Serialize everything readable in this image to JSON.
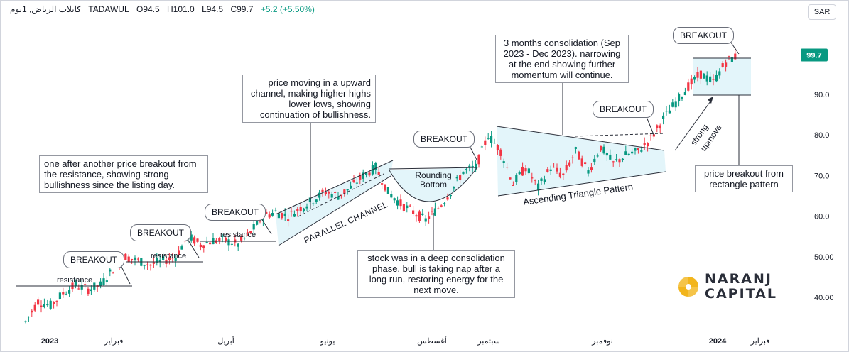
{
  "header": {
    "symbol": "كابلات الرياض, 1يوم",
    "exchange": "TADAWUL",
    "open": "O94.5",
    "high": "H101.0",
    "low": "L94.5",
    "close": "C99.7",
    "change": "+5.2 (+5.50%)"
  },
  "currency": "SAR",
  "annotations": {
    "breakout_label": "BREAKOUT",
    "resistance_label": "resistance",
    "note_resistance": "one after another price breakout from the resistance, showing strong bullishness since the listing day.",
    "note_channel": "price moving in a upward channel, making higher highs lower lows, showing continuation of bullishness.",
    "note_deep": "stock was in a deep consolidation phase. bull is taking nap after a long run, restoring energy for the next move.",
    "note_consolidation": "3 months consolidation (Sep 2023 - Dec 2023). narrowing at the end showing further momentum will continue.",
    "note_rectangle": "price breakout from rectangle pattern",
    "parallel_channel": "PARALLEL CHANNEL",
    "rounding_bottom_1": "Rounding",
    "rounding_bottom_2": "Bottom",
    "ascending_triangle": "Ascending Triangle Pattern",
    "strong_upmove_1": "strong",
    "strong_upmove_2": "upmove"
  },
  "logo": {
    "line1": "NARANJ",
    "line2": "CAPITAL",
    "mark_color": "#f2b51c"
  },
  "colors": {
    "up": "#089981",
    "down": "#f23645",
    "pattern_fill": "#e3f5fa",
    "price_badge": "#089981",
    "line": "#2a2e39"
  },
  "chart_data": {
    "type": "candlestick",
    "x_ticks": [
      "2023",
      "فبراير",
      "أبريل",
      "يونيو",
      "أغسطس",
      "سبتمبر",
      "نوفمبر",
      "2024",
      "فبراير"
    ],
    "y_ticks": [
      "90.0",
      "80.0",
      "70.0",
      "60.0",
      "50.00",
      "40.00"
    ],
    "last_price": "99.7",
    "ylim": [
      35,
      102
    ],
    "series": [
      {
        "values": [
          [
            0,
            42,
            34
          ],
          [
            10,
            36,
            39
          ],
          [
            20,
            39,
            38
          ],
          [
            30,
            38,
            41
          ],
          [
            40,
            41,
            43
          ],
          [
            50,
            43,
            42
          ],
          [
            60,
            42,
            43
          ],
          [
            70,
            43,
            47
          ],
          [
            80,
            47,
            50
          ],
          [
            90,
            50,
            49
          ],
          [
            100,
            49,
            48
          ],
          [
            110,
            48,
            49
          ],
          [
            120,
            49,
            50
          ],
          [
            130,
            50,
            55
          ],
          [
            140,
            55,
            53
          ],
          [
            150,
            53,
            54
          ],
          [
            160,
            54,
            54
          ],
          [
            170,
            54,
            53
          ],
          [
            180,
            53,
            56
          ],
          [
            190,
            56,
            60
          ],
          [
            200,
            60,
            61
          ],
          [
            210,
            61,
            60
          ],
          [
            220,
            60,
            62
          ],
          [
            230,
            62,
            64
          ],
          [
            240,
            64,
            66
          ],
          [
            250,
            66,
            65
          ],
          [
            260,
            65,
            67
          ],
          [
            270,
            67,
            70
          ],
          [
            280,
            70,
            72
          ],
          [
            290,
            72,
            66
          ],
          [
            300,
            66,
            63
          ],
          [
            310,
            63,
            61
          ],
          [
            320,
            61,
            59
          ],
          [
            330,
            59,
            62
          ],
          [
            340,
            62,
            66
          ],
          [
            350,
            66,
            71
          ],
          [
            360,
            71,
            72
          ],
          [
            370,
            72,
            80
          ],
          [
            380,
            80,
            76
          ],
          [
            390,
            76,
            68
          ],
          [
            400,
            68,
            72
          ],
          [
            410,
            72,
            67
          ],
          [
            420,
            67,
            72
          ],
          [
            430,
            72,
            70
          ],
          [
            440,
            70,
            76
          ],
          [
            450,
            76,
            71
          ],
          [
            460,
            71,
            77
          ],
          [
            470,
            77,
            73
          ],
          [
            480,
            73,
            75
          ],
          [
            490,
            75,
            76
          ],
          [
            500,
            76,
            79
          ],
          [
            510,
            79,
            84
          ],
          [
            520,
            84,
            88
          ],
          [
            530,
            88,
            92
          ],
          [
            540,
            92,
            95
          ],
          [
            550,
            95,
            93
          ],
          [
            560,
            93,
            98
          ],
          [
            570,
            98,
            99.7
          ]
        ],
        "fields": [
          "t",
          "open",
          "close"
        ]
      }
    ]
  }
}
